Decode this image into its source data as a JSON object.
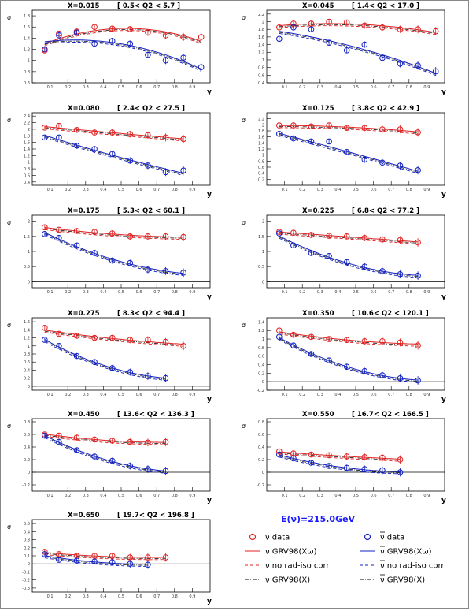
{
  "chart_data": [
    {
      "type": "scatter",
      "x_value": "X=0.015",
      "q2_range": "[ 0.5< Q2 < 5.7 ]",
      "ylabel": "σ",
      "xlabel": "y",
      "xlim": [
        0,
        1
      ],
      "ylim": [
        0.6,
        1.9
      ],
      "yticks": [
        0.6,
        0.8,
        1.0,
        1.2,
        1.4,
        1.6,
        1.8
      ],
      "series": [
        {
          "points": [
            [
              0.07,
              1.18
            ],
            [
              0.15,
              1.48
            ],
            [
              0.25,
              1.52
            ],
            [
              0.35,
              1.6
            ],
            [
              0.45,
              1.57
            ],
            [
              0.55,
              1.56
            ],
            [
              0.65,
              1.5
            ],
            [
              0.75,
              1.45
            ],
            [
              0.85,
              1.42
            ],
            [
              0.95,
              1.42
            ]
          ]
        },
        {
          "points": [
            [
              0.07,
              1.2
            ],
            [
              0.15,
              1.45
            ],
            [
              0.25,
              1.5
            ],
            [
              0.35,
              1.3
            ],
            [
              0.45,
              1.35
            ],
            [
              0.55,
              1.3
            ],
            [
              0.65,
              1.1
            ],
            [
              0.75,
              1.0
            ],
            [
              0.85,
              1.05
            ],
            [
              0.95,
              0.88
            ]
          ]
        }
      ]
    },
    {
      "type": "scatter",
      "x_value": "X=0.045",
      "q2_range": "[ 1.4< Q2 < 17.0 ]",
      "ylabel": "σ",
      "xlabel": "y",
      "xlim": [
        0,
        1
      ],
      "ylim": [
        0.4,
        2.3
      ],
      "yticks": [
        0.4,
        0.6,
        0.8,
        1.0,
        1.2,
        1.4,
        1.6,
        1.8,
        2.0,
        2.2
      ],
      "series": [
        {
          "points": [
            [
              0.07,
              1.85
            ],
            [
              0.15,
              1.95
            ],
            [
              0.25,
              1.95
            ],
            [
              0.35,
              2.0
            ],
            [
              0.45,
              1.98
            ],
            [
              0.55,
              1.9
            ],
            [
              0.65,
              1.85
            ],
            [
              0.75,
              1.8
            ],
            [
              0.85,
              1.8
            ],
            [
              0.95,
              1.75
            ]
          ]
        },
        {
          "points": [
            [
              0.07,
              1.55
            ],
            [
              0.15,
              1.85
            ],
            [
              0.25,
              1.8
            ],
            [
              0.35,
              1.45
            ],
            [
              0.45,
              1.25
            ],
            [
              0.55,
              1.4
            ],
            [
              0.65,
              1.05
            ],
            [
              0.75,
              0.9
            ],
            [
              0.85,
              0.85
            ],
            [
              0.95,
              0.7
            ]
          ]
        }
      ]
    },
    {
      "type": "scatter",
      "x_value": "X=0.080",
      "q2_range": "[ 2.4< Q2 < 27.5 ]",
      "ylabel": "σ",
      "xlabel": "y",
      "xlim": [
        0,
        1
      ],
      "ylim": [
        0.3,
        2.5
      ],
      "yticks": [
        0.4,
        0.6,
        0.8,
        1.0,
        1.2,
        1.4,
        1.6,
        1.8,
        2.0,
        2.2,
        2.4
      ],
      "series": [
        {
          "points": [
            [
              0.07,
              2.05
            ],
            [
              0.15,
              2.1
            ],
            [
              0.25,
              1.98
            ],
            [
              0.35,
              1.9
            ],
            [
              0.45,
              1.9
            ],
            [
              0.55,
              1.85
            ],
            [
              0.65,
              1.82
            ],
            [
              0.75,
              1.75
            ],
            [
              0.85,
              1.7
            ]
          ]
        },
        {
          "points": [
            [
              0.07,
              1.75
            ],
            [
              0.15,
              1.75
            ],
            [
              0.25,
              1.5
            ],
            [
              0.35,
              1.4
            ],
            [
              0.45,
              1.25
            ],
            [
              0.55,
              1.05
            ],
            [
              0.65,
              0.9
            ],
            [
              0.75,
              0.7
            ],
            [
              0.85,
              0.75
            ]
          ]
        }
      ]
    },
    {
      "type": "scatter",
      "x_value": "X=0.125",
      "q2_range": "[ 3.8< Q2 < 42.9 ]",
      "ylabel": "σ",
      "xlabel": "y",
      "xlim": [
        0,
        1
      ],
      "ylim": [
        0.0,
        2.4
      ],
      "yticks": [
        0.2,
        0.4,
        0.6,
        0.8,
        1.0,
        1.2,
        1.4,
        1.6,
        1.8,
        2.0,
        2.2
      ],
      "series": [
        {
          "points": [
            [
              0.07,
              1.98
            ],
            [
              0.15,
              1.98
            ],
            [
              0.25,
              1.95
            ],
            [
              0.35,
              1.98
            ],
            [
              0.45,
              1.9
            ],
            [
              0.55,
              1.9
            ],
            [
              0.65,
              1.85
            ],
            [
              0.75,
              1.85
            ],
            [
              0.85,
              1.75
            ]
          ]
        },
        {
          "points": [
            [
              0.07,
              1.7
            ],
            [
              0.15,
              1.55
            ],
            [
              0.25,
              1.45
            ],
            [
              0.35,
              1.45
            ],
            [
              0.45,
              1.1
            ],
            [
              0.55,
              0.85
            ],
            [
              0.65,
              0.75
            ],
            [
              0.75,
              0.65
            ],
            [
              0.85,
              0.5
            ]
          ]
        }
      ]
    },
    {
      "type": "scatter",
      "x_value": "X=0.175",
      "q2_range": "[ 5.3< Q2 < 60.1 ]",
      "ylabel": "σ",
      "xlabel": "y",
      "xlim": [
        0,
        1
      ],
      "ylim": [
        -0.2,
        2.2
      ],
      "yticks": [
        0,
        0.5,
        1.0,
        1.5,
        2.0
      ],
      "series": [
        {
          "points": [
            [
              0.07,
              1.8
            ],
            [
              0.15,
              1.72
            ],
            [
              0.25,
              1.68
            ],
            [
              0.35,
              1.65
            ],
            [
              0.45,
              1.6
            ],
            [
              0.55,
              1.5
            ],
            [
              0.65,
              1.5
            ],
            [
              0.75,
              1.5
            ],
            [
              0.85,
              1.48
            ]
          ]
        },
        {
          "points": [
            [
              0.07,
              1.58
            ],
            [
              0.15,
              1.45
            ],
            [
              0.25,
              1.2
            ],
            [
              0.35,
              0.95
            ],
            [
              0.45,
              0.7
            ],
            [
              0.55,
              0.62
            ],
            [
              0.65,
              0.4
            ],
            [
              0.75,
              0.35
            ],
            [
              0.85,
              0.3
            ]
          ]
        }
      ]
    },
    {
      "type": "scatter",
      "x_value": "X=0.225",
      "q2_range": "[ 6.8< Q2 < 77.2 ]",
      "ylabel": "σ",
      "xlabel": "y",
      "xlim": [
        0,
        1
      ],
      "ylim": [
        -0.2,
        2.2
      ],
      "yticks": [
        0,
        0.5,
        1.0,
        1.5,
        2.0
      ],
      "series": [
        {
          "points": [
            [
              0.07,
              1.65
            ],
            [
              0.15,
              1.62
            ],
            [
              0.25,
              1.55
            ],
            [
              0.35,
              1.52
            ],
            [
              0.45,
              1.5
            ],
            [
              0.55,
              1.45
            ],
            [
              0.65,
              1.4
            ],
            [
              0.75,
              1.38
            ],
            [
              0.85,
              1.3
            ]
          ]
        },
        {
          "points": [
            [
              0.07,
              1.6
            ],
            [
              0.15,
              1.2
            ],
            [
              0.25,
              0.95
            ],
            [
              0.35,
              0.85
            ],
            [
              0.45,
              0.65
            ],
            [
              0.55,
              0.5
            ],
            [
              0.65,
              0.35
            ],
            [
              0.75,
              0.25
            ],
            [
              0.85,
              0.2
            ]
          ]
        }
      ]
    },
    {
      "type": "scatter",
      "x_value": "X=0.275",
      "q2_range": "[ 8.3< Q2 < 94.4 ]",
      "ylabel": "σ",
      "xlabel": "y",
      "xlim": [
        0,
        1
      ],
      "ylim": [
        -0.1,
        1.7
      ],
      "yticks": [
        0,
        0.2,
        0.4,
        0.6,
        0.8,
        1.0,
        1.2,
        1.4,
        1.6
      ],
      "series": [
        {
          "points": [
            [
              0.07,
              1.45
            ],
            [
              0.15,
              1.3
            ],
            [
              0.25,
              1.25
            ],
            [
              0.35,
              1.2
            ],
            [
              0.45,
              1.2
            ],
            [
              0.55,
              1.15
            ],
            [
              0.65,
              1.15
            ],
            [
              0.75,
              1.1
            ],
            [
              0.85,
              1.0
            ]
          ]
        },
        {
          "points": [
            [
              0.07,
              1.15
            ],
            [
              0.15,
              1.0
            ],
            [
              0.25,
              0.75
            ],
            [
              0.35,
              0.6
            ],
            [
              0.45,
              0.45
            ],
            [
              0.55,
              0.35
            ],
            [
              0.65,
              0.25
            ],
            [
              0.75,
              0.2
            ]
          ]
        }
      ]
    },
    {
      "type": "scatter",
      "x_value": "X=0.350",
      "q2_range": "[ 10.6< Q2 < 120.1 ]",
      "ylabel": "σ",
      "xlabel": "y",
      "xlim": [
        0,
        1
      ],
      "ylim": [
        -0.2,
        1.5
      ],
      "yticks": [
        -0.2,
        0,
        0.2,
        0.4,
        0.6,
        0.8,
        1.0,
        1.2,
        1.4
      ],
      "series": [
        {
          "points": [
            [
              0.07,
              1.2
            ],
            [
              0.15,
              1.1
            ],
            [
              0.25,
              1.05
            ],
            [
              0.35,
              1.0
            ],
            [
              0.45,
              0.98
            ],
            [
              0.55,
              0.95
            ],
            [
              0.65,
              0.95
            ],
            [
              0.75,
              0.92
            ],
            [
              0.85,
              0.85
            ]
          ]
        },
        {
          "points": [
            [
              0.07,
              1.05
            ],
            [
              0.15,
              0.85
            ],
            [
              0.25,
              0.65
            ],
            [
              0.35,
              0.5
            ],
            [
              0.45,
              0.35
            ],
            [
              0.55,
              0.25
            ],
            [
              0.65,
              0.15
            ],
            [
              0.75,
              0.08
            ],
            [
              0.85,
              0.03
            ]
          ]
        }
      ]
    },
    {
      "type": "scatter",
      "x_value": "X=0.450",
      "q2_range": "[ 13.6< Q2 < 136.3 ]",
      "ylabel": "σ",
      "xlabel": "y",
      "xlim": [
        0,
        1
      ],
      "ylim": [
        -0.3,
        0.85
      ],
      "yticks": [
        -0.2,
        0,
        0.2,
        0.4,
        0.6,
        0.8
      ],
      "series": [
        {
          "points": [
            [
              0.07,
              0.6
            ],
            [
              0.15,
              0.58
            ],
            [
              0.25,
              0.55
            ],
            [
              0.35,
              0.52
            ],
            [
              0.45,
              0.5
            ],
            [
              0.55,
              0.48
            ],
            [
              0.65,
              0.47
            ],
            [
              0.75,
              0.48
            ]
          ]
        },
        {
          "points": [
            [
              0.07,
              0.58
            ],
            [
              0.15,
              0.48
            ],
            [
              0.25,
              0.35
            ],
            [
              0.35,
              0.25
            ],
            [
              0.45,
              0.18
            ],
            [
              0.55,
              0.1
            ],
            [
              0.65,
              0.05
            ],
            [
              0.75,
              0.02
            ]
          ]
        }
      ]
    },
    {
      "type": "scatter",
      "x_value": "X=0.550",
      "q2_range": "[ 16.7< Q2 < 166.5 ]",
      "ylabel": "σ",
      "xlabel": "y",
      "xlim": [
        0,
        1
      ],
      "ylim": [
        -0.3,
        0.85
      ],
      "yticks": [
        -0.2,
        0,
        0.2,
        0.4,
        0.6,
        0.8
      ],
      "series": [
        {
          "points": [
            [
              0.07,
              0.33
            ],
            [
              0.15,
              0.3
            ],
            [
              0.25,
              0.28
            ],
            [
              0.35,
              0.27
            ],
            [
              0.45,
              0.25
            ],
            [
              0.55,
              0.24
            ],
            [
              0.65,
              0.23
            ],
            [
              0.75,
              0.2
            ]
          ]
        },
        {
          "points": [
            [
              0.07,
              0.28
            ],
            [
              0.15,
              0.22
            ],
            [
              0.25,
              0.15
            ],
            [
              0.35,
              0.1
            ],
            [
              0.45,
              0.07
            ],
            [
              0.55,
              0.05
            ],
            [
              0.65,
              0.03
            ],
            [
              0.75,
              0.0
            ]
          ]
        }
      ]
    },
    {
      "type": "scatter",
      "x_value": "X=0.650",
      "q2_range": "[ 19.7< Q2 < 196.8 ]",
      "ylabel": "σ",
      "xlabel": "y",
      "xlim": [
        0,
        1
      ],
      "ylim": [
        -0.35,
        0.55
      ],
      "yticks": [
        -0.3,
        -0.2,
        -0.1,
        0,
        0.1,
        0.2,
        0.3,
        0.4,
        0.5
      ],
      "series": [
        {
          "points": [
            [
              0.07,
              0.15
            ],
            [
              0.15,
              0.12
            ],
            [
              0.25,
              0.1
            ],
            [
              0.35,
              0.1
            ],
            [
              0.45,
              0.1
            ],
            [
              0.55,
              0.08
            ],
            [
              0.65,
              0.08
            ],
            [
              0.75,
              0.08
            ]
          ]
        },
        {
          "points": [
            [
              0.07,
              0.12
            ],
            [
              0.15,
              0.05
            ],
            [
              0.25,
              0.04
            ],
            [
              0.35,
              0.03
            ],
            [
              0.45,
              0.02
            ],
            [
              0.55,
              0.0
            ],
            [
              0.65,
              -0.01
            ]
          ]
        }
      ]
    }
  ],
  "xticks": [
    0.1,
    0.2,
    0.3,
    0.4,
    0.5,
    0.6,
    0.7,
    0.8,
    0.9
  ],
  "colors": {
    "nu": "#e02020",
    "nubar": "#1020c0",
    "dashed": "#000000"
  },
  "legend": {
    "title": "E(ν)=215.0GeV",
    "items": [
      {
        "label": "ν data",
        "kind": "circle",
        "color": "#e02020"
      },
      {
        "label": "ν data",
        "kind": "circle",
        "color": "#1020c0",
        "bar": true
      },
      {
        "label": "ν GRV98(Xω)",
        "kind": "solid",
        "color": "#e02020"
      },
      {
        "label": "ν GRV98(Xω)",
        "kind": "solid",
        "color": "#1020c0",
        "bar": true
      },
      {
        "label": "ν no rad-iso corr",
        "kind": "dash",
        "color": "#e02020"
      },
      {
        "label": "ν no rad-iso corr",
        "kind": "dash",
        "color": "#1020c0",
        "bar": true
      },
      {
        "label": "ν GRV98(X)",
        "kind": "dashdot",
        "color": "#000000"
      },
      {
        "label": "ν GRV98(X)",
        "kind": "dashdot",
        "color": "#000000",
        "bar": true
      }
    ]
  }
}
